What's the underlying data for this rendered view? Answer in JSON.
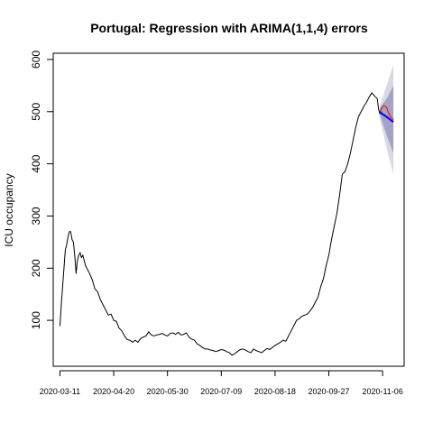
{
  "chart_data": {
    "type": "line",
    "title": "Portugal: Regression with ARIMA(1,1,4) errors",
    "xlabel": "",
    "ylabel": "ICU occupancy",
    "xlim": [
      -5,
      256
    ],
    "ylim": [
      12,
      612
    ],
    "yticks": [
      100,
      200,
      300,
      400,
      500,
      600
    ],
    "xticks": [
      {
        "day": 0,
        "label": "2020-03-11"
      },
      {
        "day": 40,
        "label": "2020-04-20"
      },
      {
        "day": 80,
        "label": "2020-05-30"
      },
      {
        "day": 120,
        "label": "2020-07-09"
      },
      {
        "day": 160,
        "label": "2020-08-18"
      },
      {
        "day": 200,
        "label": "2020-09-27"
      },
      {
        "day": 240,
        "label": "2020-11-06"
      }
    ],
    "colors": {
      "observed": "#000000",
      "actual_test": "#ff0000",
      "forecast": "#0000ff",
      "band_95": "#d9d9e6",
      "band_80": "#a3a3c4"
    },
    "series": [
      {
        "role": "observed",
        "x": [
          0,
          1,
          2,
          3,
          4,
          5,
          6,
          7,
          8,
          9,
          10,
          11,
          12,
          13,
          14,
          15,
          16,
          17,
          18,
          19,
          20,
          22,
          24,
          26,
          28,
          30,
          32,
          34,
          36,
          38,
          40,
          42,
          44,
          46,
          48,
          50,
          52,
          54,
          56,
          58,
          60,
          62,
          64,
          66,
          68,
          70,
          72,
          74,
          76,
          78,
          80,
          82,
          84,
          86,
          88,
          90,
          92,
          94,
          96,
          98,
          100,
          102,
          104,
          106,
          108,
          110,
          112,
          114,
          116,
          118,
          120,
          122,
          124,
          126,
          128,
          130,
          132,
          134,
          136,
          138,
          140,
          142,
          144,
          146,
          148,
          150,
          152,
          154,
          156,
          158,
          160,
          162,
          164,
          166,
          168,
          170,
          172,
          174,
          176,
          178,
          180,
          182,
          184,
          186,
          188,
          190,
          192,
          194,
          196,
          198,
          200,
          202,
          204,
          206,
          208,
          210,
          212,
          214,
          216,
          218,
          220,
          222,
          224,
          226,
          228,
          230,
          232,
          234,
          236,
          237,
          238
        ],
        "values": [
          89,
          130,
          165,
          200,
          235,
          245,
          260,
          270,
          270,
          255,
          250,
          225,
          190,
          215,
          225,
          230,
          220,
          225,
          215,
          205,
          200,
          190,
          178,
          160,
          155,
          140,
          130,
          120,
          110,
          112,
          100,
          98,
          85,
          80,
          70,
          63,
          62,
          58,
          62,
          58,
          65,
          68,
          70,
          78,
          72,
          70,
          72,
          73,
          75,
          72,
          70,
          75,
          76,
          73,
          77,
          72,
          73,
          76,
          68,
          64,
          62,
          55,
          52,
          48,
          45,
          45,
          43,
          42,
          40,
          42,
          44,
          43,
          40,
          38,
          33,
          36,
          40,
          44,
          45,
          43,
          40,
          38,
          45,
          42,
          40,
          38,
          42,
          46,
          44,
          48,
          52,
          55,
          58,
          62,
          60,
          70,
          80,
          90,
          100,
          103,
          108,
          110,
          112,
          118,
          125,
          135,
          145,
          165,
          180,
          205,
          225,
          255,
          280,
          305,
          340,
          380,
          385,
          400,
          420,
          445,
          470,
          490,
          500,
          510,
          518,
          528,
          536,
          530,
          525,
          505,
          495
        ]
      },
      {
        "role": "actual_test",
        "x": [
          238,
          239,
          240,
          241,
          242,
          243,
          244,
          245,
          246,
          247,
          248
        ],
        "values": [
          500,
          505,
          510,
          512,
          510,
          508,
          500,
          495,
          490,
          487,
          484
        ]
      },
      {
        "role": "forecast",
        "x": [
          238,
          240,
          242,
          244,
          246,
          248
        ],
        "values": [
          500,
          495,
          492,
          488,
          484,
          480
        ]
      }
    ],
    "intervals": [
      {
        "level": 95,
        "x": [
          238,
          243,
          248
        ],
        "lower": [
          485,
          430,
          380
        ],
        "upper": [
          512,
          550,
          590
        ]
      },
      {
        "level": 80,
        "x": [
          238,
          243,
          248
        ],
        "lower": [
          493,
          455,
          420
        ],
        "upper": [
          507,
          525,
          550
        ]
      }
    ]
  }
}
